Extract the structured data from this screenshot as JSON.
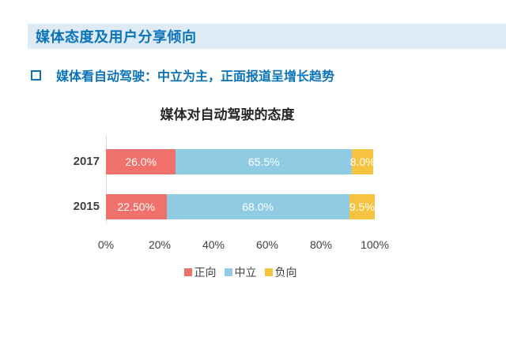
{
  "header": {
    "title": "媒体态度及用户分享倾向"
  },
  "subtitle": {
    "bullet_icon": "hollow-square-bullet",
    "text": "媒体看自动驾驶：中立为主，正面报道呈增长趋势"
  },
  "colors": {
    "header_band": "#DEEAF4",
    "heading_text": "#0A73B9",
    "positive": "#F0716B",
    "neutral": "#8FCBE2",
    "negative": "#F6C340",
    "axis_text": "#404040",
    "axis_line": "#D9D9D9",
    "bar_label_text": "#FFFFFF"
  },
  "chart_data": {
    "type": "bar",
    "orientation": "horizontal",
    "stacked": true,
    "title": "媒体对自动驾驶的态度",
    "categories": [
      "2017",
      "2015"
    ],
    "series": [
      {
        "name": "正向",
        "color": "#F0716B",
        "values": [
          26.0,
          22.5
        ],
        "labels": [
          "26.0%",
          "22.50%"
        ]
      },
      {
        "name": "中立",
        "color": "#8FCBE2",
        "values": [
          65.5,
          68.0
        ],
        "labels": [
          "65.5%",
          "68.0%"
        ]
      },
      {
        "name": "负向",
        "color": "#F6C340",
        "values": [
          8.0,
          9.5
        ],
        "labels": [
          "8.0%",
          "9.5%"
        ]
      }
    ],
    "x_ticks": [
      "0%",
      "20%",
      "40%",
      "60%",
      "80%",
      "100%"
    ],
    "xlim": [
      0,
      100
    ],
    "grid": false,
    "legend_position": "bottom"
  }
}
